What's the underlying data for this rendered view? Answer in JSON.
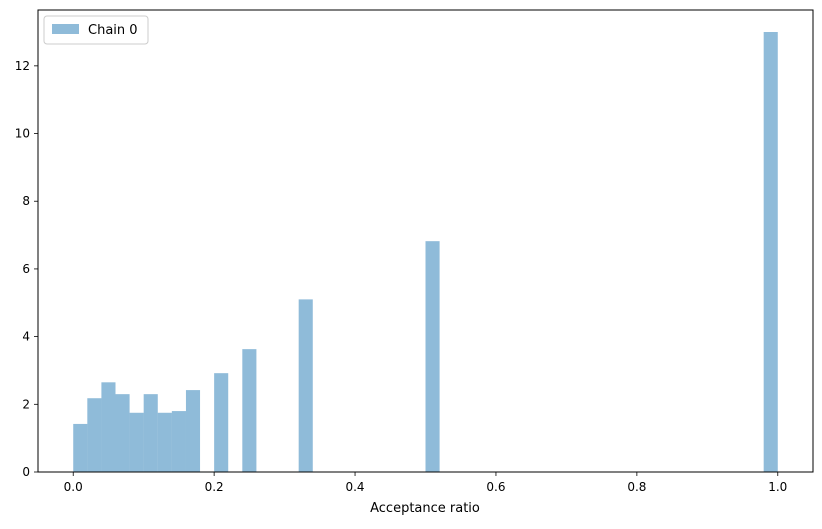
{
  "chart_data": {
    "type": "bar",
    "xlabel": "Acceptance ratio",
    "ylabel": "",
    "title": "",
    "xlim": [
      -0.05,
      1.05
    ],
    "ylim": [
      0,
      13.65
    ],
    "xticks": [
      0.0,
      0.2,
      0.4,
      0.6,
      0.8,
      1.0
    ],
    "xtick_labels": [
      "0.0",
      "0.2",
      "0.4",
      "0.6",
      "0.8",
      "1.0"
    ],
    "yticks": [
      0,
      2,
      4,
      6,
      8,
      10,
      12
    ],
    "ytick_labels": [
      "0",
      "2",
      "4",
      "6",
      "8",
      "10",
      "12"
    ],
    "grid": false,
    "legend_position": "top-left",
    "bin_width": 0.02,
    "series": [
      {
        "name": "Chain 0",
        "color": "#1f77b4",
        "opacity": 0.5,
        "bins": [
          {
            "x0": 0.0,
            "x1": 0.02,
            "value": 1.42
          },
          {
            "x0": 0.02,
            "x1": 0.04,
            "value": 2.18
          },
          {
            "x0": 0.04,
            "x1": 0.06,
            "value": 2.65
          },
          {
            "x0": 0.06,
            "x1": 0.08,
            "value": 2.3
          },
          {
            "x0": 0.08,
            "x1": 0.1,
            "value": 1.75
          },
          {
            "x0": 0.1,
            "x1": 0.12,
            "value": 2.3
          },
          {
            "x0": 0.12,
            "x1": 0.14,
            "value": 1.75
          },
          {
            "x0": 0.14,
            "x1": 0.16,
            "value": 1.8
          },
          {
            "x0": 0.16,
            "x1": 0.18,
            "value": 2.42
          },
          {
            "x0": 0.2,
            "x1": 0.22,
            "value": 2.92
          },
          {
            "x0": 0.24,
            "x1": 0.26,
            "value": 3.63
          },
          {
            "x0": 0.32,
            "x1": 0.34,
            "value": 5.1
          },
          {
            "x0": 0.5,
            "x1": 0.52,
            "value": 6.82
          },
          {
            "x0": 0.98,
            "x1": 1.0,
            "value": 13.0
          }
        ]
      }
    ]
  }
}
